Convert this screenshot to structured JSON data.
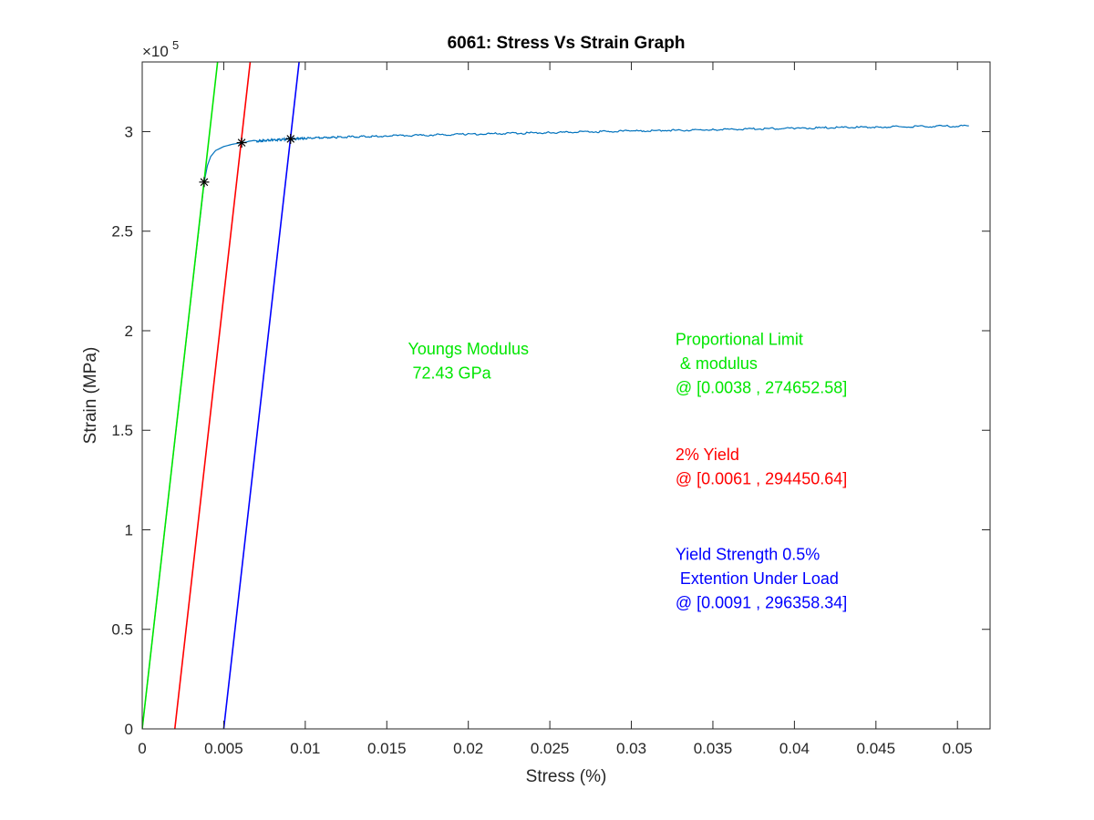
{
  "chart_data": {
    "type": "line",
    "title": "6061: Stress Vs Strain Graph",
    "xlabel": "Stress (%)",
    "ylabel": "Strain (MPa)",
    "y_exponent_label": "×10",
    "y_exponent_power": "5",
    "xlim": [
      0,
      0.052
    ],
    "ylim": [
      0,
      335000
    ],
    "y_scale_divisor": 100000,
    "x_ticks": [
      0,
      0.005,
      0.01,
      0.015,
      0.02,
      0.025,
      0.03,
      0.035,
      0.04,
      0.045,
      0.05
    ],
    "x_tick_labels": [
      "0",
      "0.005",
      "0.01",
      "0.015",
      "0.02",
      "0.025",
      "0.03",
      "0.035",
      "0.04",
      "0.045",
      "0.05"
    ],
    "y_ticks": [
      0,
      50000,
      100000,
      150000,
      200000,
      250000,
      300000
    ],
    "y_tick_labels": [
      "0",
      "0.5",
      "1",
      "1.5",
      "2",
      "2.5",
      "3"
    ],
    "grid": false,
    "series": [
      {
        "color": "#0072BD",
        "x": [
          0,
          0.001,
          0.002,
          0.003,
          0.0036,
          0.0038,
          0.004,
          0.0042,
          0.0045,
          0.005,
          0.0055,
          0.0061,
          0.007,
          0.008,
          0.0091,
          0.01,
          0.012,
          0.015,
          0.02,
          0.025,
          0.03,
          0.035,
          0.04,
          0.045,
          0.0507
        ],
        "y": [
          0,
          72430,
          144860,
          217290,
          260000,
          274652,
          283000,
          287500,
          290500,
          292500,
          293600,
          294450,
          295200,
          295800,
          296358,
          296700,
          297200,
          297800,
          298700,
          299500,
          300300,
          301000,
          301700,
          302300,
          302900
        ]
      },
      {
        "color": "#00E600",
        "x": [
          0,
          0.00465
        ],
        "y": [
          0,
          337000
        ]
      },
      {
        "color": "#FF0000",
        "x": [
          0.002,
          0.00665
        ],
        "y": [
          0,
          337000
        ]
      },
      {
        "color": "#0000FF",
        "x": [
          0.005,
          0.00965
        ],
        "y": [
          0,
          337000
        ]
      }
    ],
    "markers": [
      {
        "x": 0.0038,
        "y": 274652.58
      },
      {
        "x": 0.0061,
        "y": 294450.64
      },
      {
        "x": 0.0091,
        "y": 296358.34
      }
    ],
    "annotations": [
      {
        "lines": [
          "Youngs Modulus",
          " 72.43 GPa"
        ],
        "color": "#00E600",
        "x": 0.0163,
        "y": 188000
      },
      {
        "lines": [
          "Proportional Limit",
          " & modulus",
          "@ [0.0038 , 274652.58]"
        ],
        "color": "#00E600",
        "x": 0.0327,
        "y": 193000
      },
      {
        "lines": [
          "2% Yield",
          "@ [0.0061 , 294450.64]"
        ],
        "color": "#FF0000",
        "x": 0.0327,
        "y": 135000
      },
      {
        "lines": [
          "Yield Strength 0.5%",
          " Extention Under Load",
          "@ [0.0091 , 296358.34]"
        ],
        "color": "#0000FF",
        "x": 0.0327,
        "y": 85000
      }
    ]
  }
}
